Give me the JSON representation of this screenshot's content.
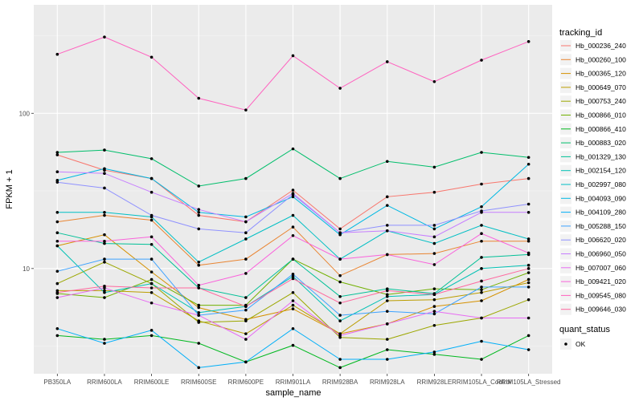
{
  "chart_data": {
    "type": "line",
    "xlabel": "sample_name",
    "ylabel": "FPKM + 1",
    "y_scale": "log10",
    "ylim": [
      2.1,
      500
    ],
    "y_ticks": [
      10,
      100
    ],
    "grid": true,
    "categories": [
      "PB350LA",
      "RRIM600LA",
      "RRIM600LE",
      "RRIM600SE",
      "RRIM600PE",
      "RRIM901LA",
      "RRIM928BA",
      "RRIM928LA",
      "RRIM928LE",
      "RRIM105LA_Control",
      "RRIM105LA_Stressed"
    ],
    "legend_placement": "right",
    "legend_title": "tracking_id",
    "legend2_title": "quant_status",
    "legend2_label": "OK",
    "series": [
      {
        "name": "Hb_000236_240",
        "color": "#F8766D",
        "values": [
          54,
          43,
          38,
          22,
          20,
          32,
          18,
          29,
          31,
          35,
          38
        ]
      },
      {
        "name": "Hb_000260_100",
        "color": "#E98532",
        "values": [
          20,
          22,
          20.5,
          10.5,
          11.5,
          18.5,
          9,
          12.3,
          12.5,
          15,
          15
        ]
      },
      {
        "name": "Hb_000365_120",
        "color": "#D59100",
        "values": [
          14,
          16.5,
          9.5,
          5.6,
          4.7,
          5.5,
          3.8,
          4.4,
          5.7,
          6.2,
          8.5
        ]
      },
      {
        "name": "Hb_000649_070",
        "color": "#BB9D00",
        "values": [
          7.2,
          7.2,
          7,
          4.6,
          3.8,
          5.8,
          3.8,
          6.2,
          6.3,
          7,
          8.1
        ]
      },
      {
        "name": "Hb_000753_240",
        "color": "#9CA700",
        "values": [
          8,
          11,
          8,
          4.5,
          4.6,
          7,
          3.6,
          3.5,
          4.3,
          4.8,
          6.3
        ]
      },
      {
        "name": "Hb_000866_010",
        "color": "#71B000",
        "values": [
          6.9,
          6.5,
          8.5,
          5.8,
          5.8,
          11.5,
          8.2,
          6.8,
          7.4,
          7.3,
          9.4
        ]
      },
      {
        "name": "Hb_000866_410",
        "color": "#00B81F",
        "values": [
          3.7,
          3.5,
          3.7,
          3.3,
          2.5,
          3.2,
          2.3,
          3,
          2.8,
          2.6,
          3.7
        ]
      },
      {
        "name": "Hb_000883_020",
        "color": "#00BE6B",
        "values": [
          56,
          58,
          51,
          34,
          38,
          59,
          38,
          49,
          45,
          56,
          52
        ]
      },
      {
        "name": "Hb_001329_130",
        "color": "#00C097",
        "values": [
          17,
          14.5,
          14.3,
          7.5,
          6.5,
          11.5,
          6.6,
          7.4,
          6.9,
          11.8,
          12.3
        ]
      },
      {
        "name": "Hb_002154_120",
        "color": "#00C1B4",
        "values": [
          14,
          7,
          8,
          5.2,
          5.7,
          8.9,
          4.6,
          6.6,
          6.8,
          10,
          10.5
        ]
      },
      {
        "name": "Hb_002997_080",
        "color": "#00BFC4",
        "values": [
          23,
          23,
          21.5,
          11,
          15.5,
          22,
          11.5,
          17.5,
          14.5,
          19,
          15.5
        ]
      },
      {
        "name": "Hb_004093_090",
        "color": "#00B9E3",
        "values": [
          37,
          44,
          38,
          23,
          21.5,
          29,
          16.5,
          25.5,
          18,
          25,
          47
        ]
      },
      {
        "name": "Hb_004109_280",
        "color": "#00AFF8",
        "values": [
          4.1,
          3.3,
          4,
          2.3,
          2.5,
          4.1,
          2.6,
          2.6,
          2.9,
          3.4,
          3
        ]
      },
      {
        "name": "Hb_005288_150",
        "color": "#3CA2FF",
        "values": [
          9.6,
          11.5,
          11.5,
          5,
          5.4,
          9.2,
          5,
          5.3,
          5.1,
          7.6,
          7.6
        ]
      },
      {
        "name": "Hb_006620_020",
        "color": "#8F91FF",
        "values": [
          36,
          33,
          22,
          18,
          17,
          30,
          17,
          19,
          19,
          23.5,
          26
        ]
      },
      {
        "name": "Hb_006960_050",
        "color": "#C67EFF",
        "values": [
          42,
          41,
          31,
          24,
          20,
          30.5,
          17,
          17.5,
          16,
          23,
          23
        ]
      },
      {
        "name": "Hb_007007_060",
        "color": "#E76BF3",
        "values": [
          6.5,
          7.5,
          6,
          5,
          3.5,
          6.2,
          3.7,
          4.4,
          5.3,
          4.8,
          4.8
        ]
      },
      {
        "name": "Hb_009421_020",
        "color": "#FA62DB",
        "values": [
          15,
          15,
          16,
          7.8,
          9.3,
          16.3,
          11.5,
          12.3,
          10.6,
          16.8,
          12.6
        ]
      },
      {
        "name": "Hb_009545_080",
        "color": "#FF61BF",
        "values": [
          240,
          310,
          230,
          125,
          105,
          235,
          145,
          215,
          160,
          220,
          290
        ]
      },
      {
        "name": "Hb_009646_030",
        "color": "#FF689F",
        "values": [
          7,
          7.7,
          7.5,
          7.5,
          5.7,
          8.6,
          6,
          7.2,
          6.8,
          8.3,
          10
        ]
      }
    ]
  }
}
